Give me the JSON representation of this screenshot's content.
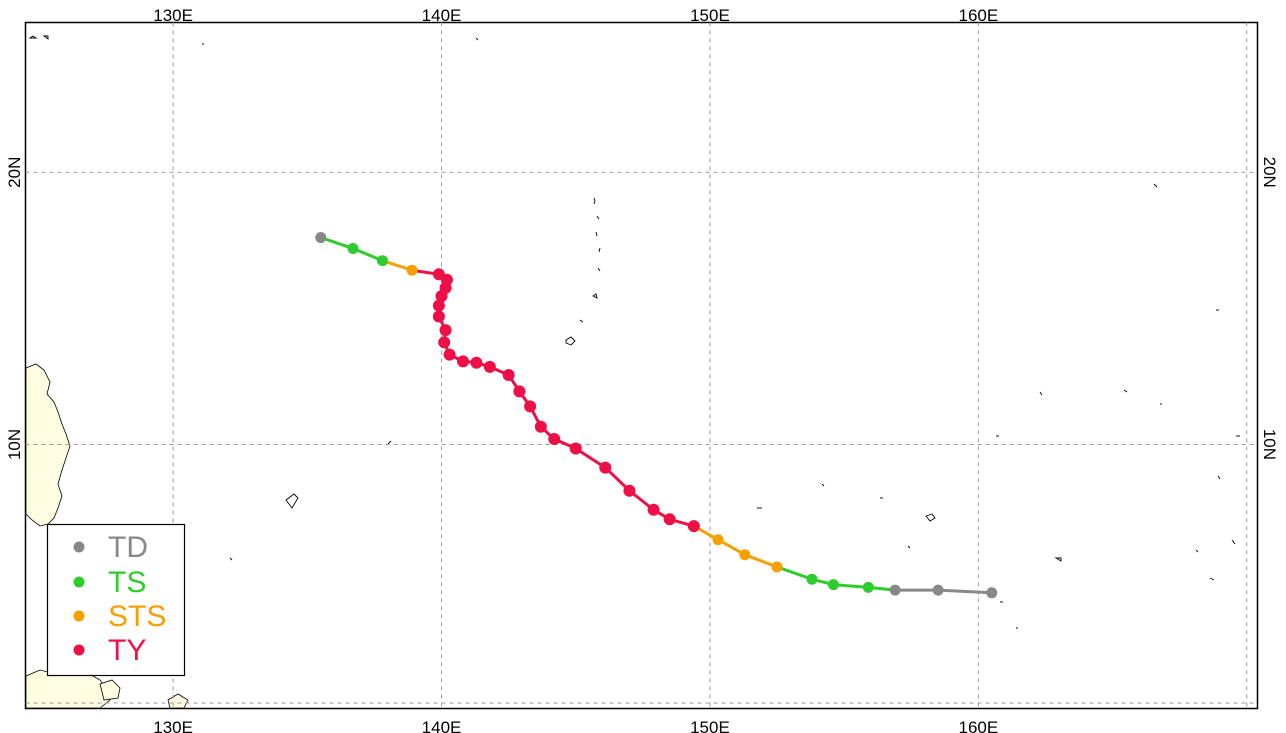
{
  "map": {
    "lon_labels": [
      {
        "text": "130E",
        "lon": 130
      },
      {
        "text": "140E",
        "lon": 140
      },
      {
        "text": "150E",
        "lon": 150
      },
      {
        "text": "160E",
        "lon": 160
      }
    ],
    "lat_labels": [
      {
        "text": "10N",
        "lat": 10
      },
      {
        "text": "20N",
        "lat": 20
      }
    ],
    "extent": {
      "lon_min": 124.5,
      "lon_max": 170.4,
      "lat_min": 0.3,
      "lat_max": 25.5
    },
    "gridlines": true,
    "land_color": "#fdfbe0",
    "ocean_color": "#ffffff"
  },
  "legend": {
    "position": "bottom-left",
    "items": [
      {
        "label": "TD",
        "color": "#888888"
      },
      {
        "label": "TS",
        "color": "#2ecc2e"
      },
      {
        "label": "STS",
        "color": "#f5a000"
      },
      {
        "label": "TY",
        "color": "#ee0f47"
      }
    ]
  },
  "track": {
    "category_colors": {
      "TD": "#888888",
      "TS": "#2ecc2e",
      "STS": "#f5a000",
      "TY": "#ee0f47"
    },
    "points": [
      {
        "lon": 160.5,
        "lat": 4.55,
        "cat": "TD"
      },
      {
        "lon": 158.5,
        "lat": 4.65,
        "cat": "TD"
      },
      {
        "lon": 156.9,
        "lat": 4.65,
        "cat": "TD"
      },
      {
        "lon": 155.9,
        "lat": 4.75,
        "cat": "TS"
      },
      {
        "lon": 154.6,
        "lat": 4.85,
        "cat": "TS"
      },
      {
        "lon": 153.8,
        "lat": 5.05,
        "cat": "TS"
      },
      {
        "lon": 152.5,
        "lat": 5.5,
        "cat": "STS"
      },
      {
        "lon": 151.3,
        "lat": 5.95,
        "cat": "STS"
      },
      {
        "lon": 150.3,
        "lat": 6.5,
        "cat": "STS"
      },
      {
        "lon": 149.4,
        "lat": 7.0,
        "cat": "TY"
      },
      {
        "lon": 148.5,
        "lat": 7.25,
        "cat": "TY"
      },
      {
        "lon": 147.9,
        "lat": 7.6,
        "cat": "TY"
      },
      {
        "lon": 147.0,
        "lat": 8.3,
        "cat": "TY"
      },
      {
        "lon": 146.1,
        "lat": 9.15,
        "cat": "TY"
      },
      {
        "lon": 145.0,
        "lat": 9.85,
        "cat": "TY"
      },
      {
        "lon": 144.2,
        "lat": 10.2,
        "cat": "TY"
      },
      {
        "lon": 143.7,
        "lat": 10.65,
        "cat": "TY"
      },
      {
        "lon": 143.3,
        "lat": 11.4,
        "cat": "TY"
      },
      {
        "lon": 142.9,
        "lat": 11.95,
        "cat": "TY"
      },
      {
        "lon": 142.5,
        "lat": 12.55,
        "cat": "TY"
      },
      {
        "lon": 141.8,
        "lat": 12.85,
        "cat": "TY"
      },
      {
        "lon": 141.3,
        "lat": 13.0,
        "cat": "TY"
      },
      {
        "lon": 140.8,
        "lat": 13.05,
        "cat": "TY"
      },
      {
        "lon": 140.3,
        "lat": 13.3,
        "cat": "TY"
      },
      {
        "lon": 140.1,
        "lat": 13.75,
        "cat": "TY"
      },
      {
        "lon": 140.15,
        "lat": 14.2,
        "cat": "TY"
      },
      {
        "lon": 139.9,
        "lat": 14.7,
        "cat": "TY"
      },
      {
        "lon": 139.9,
        "lat": 15.1,
        "cat": "TY"
      },
      {
        "lon": 140.0,
        "lat": 15.45,
        "cat": "TY"
      },
      {
        "lon": 140.15,
        "lat": 15.75,
        "cat": "TY"
      },
      {
        "lon": 140.2,
        "lat": 16.05,
        "cat": "TY"
      },
      {
        "lon": 139.9,
        "lat": 16.25,
        "cat": "TY"
      },
      {
        "lon": 138.9,
        "lat": 16.4,
        "cat": "STS"
      },
      {
        "lon": 137.8,
        "lat": 16.75,
        "cat": "TS"
      },
      {
        "lon": 136.7,
        "lat": 17.2,
        "cat": "TS"
      },
      {
        "lon": 135.5,
        "lat": 17.6,
        "cat": "TD"
      }
    ]
  }
}
